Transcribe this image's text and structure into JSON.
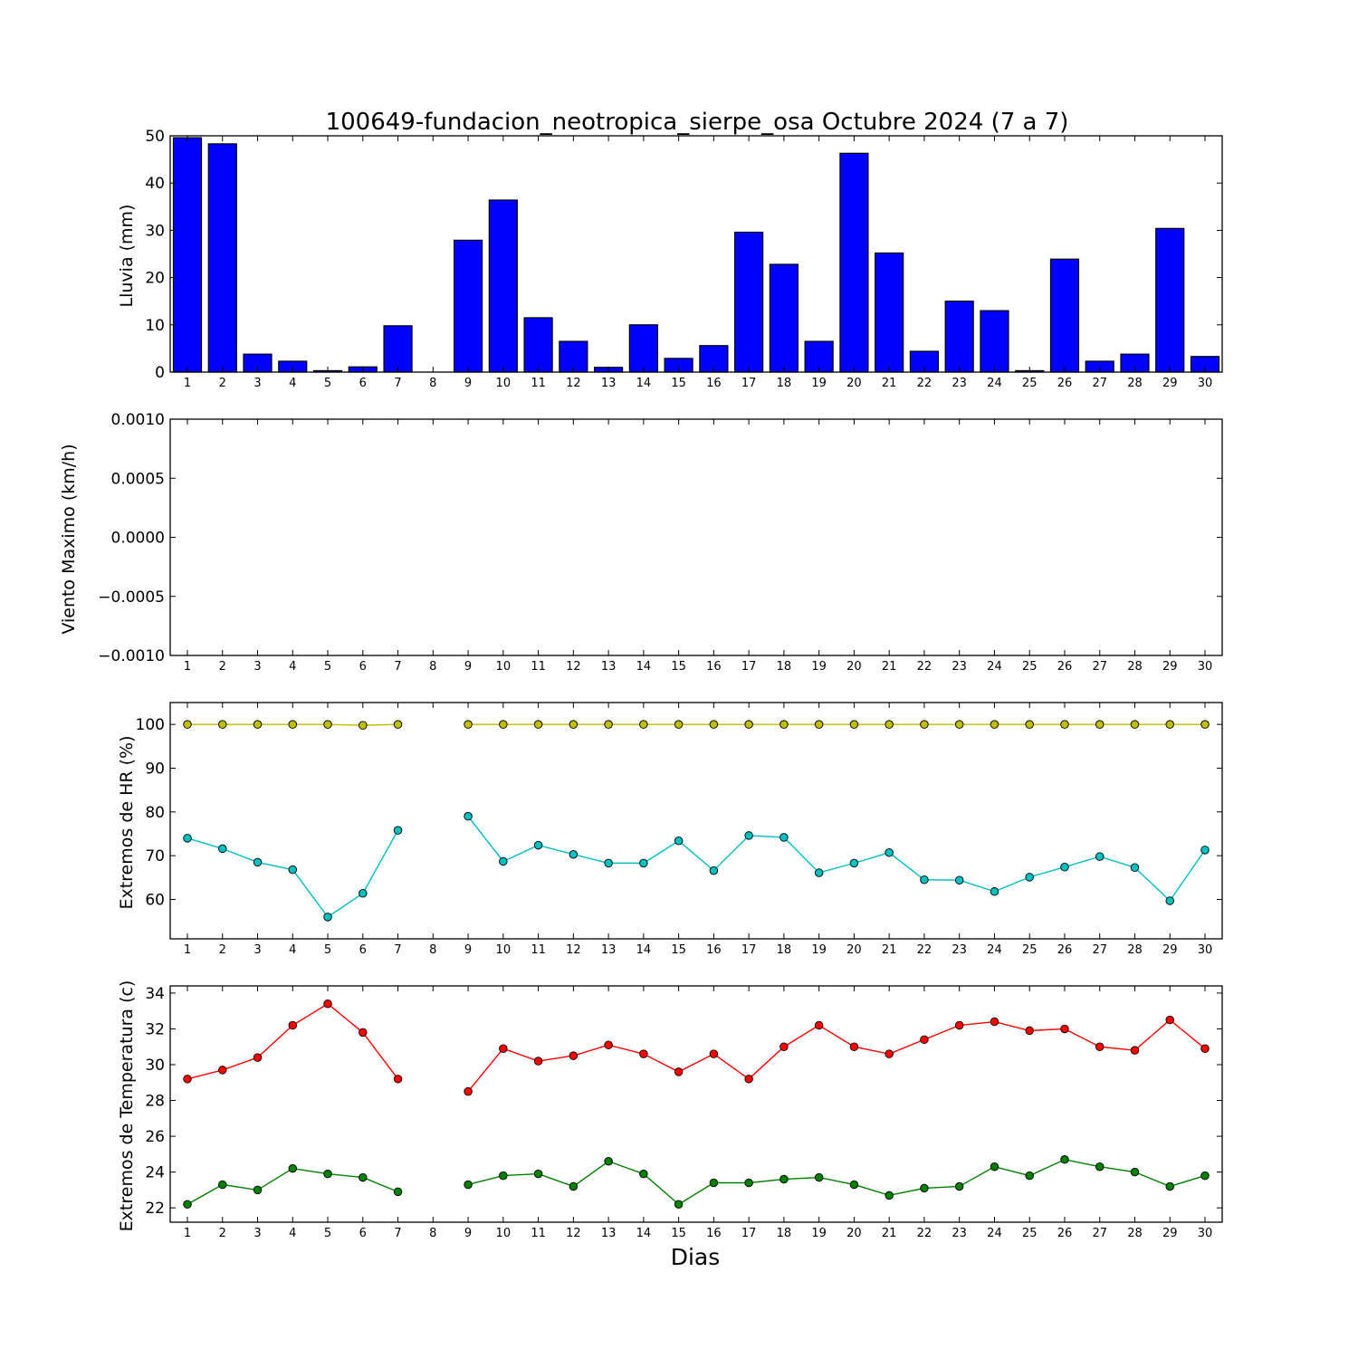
{
  "title": "100649-fundacion_neotropica_sierpe_osa Octubre 2024  (7 a 7)",
  "xlabel": "Dias",
  "colors": {
    "bar": "#0000ff",
    "hr_max": "#bfbf00",
    "hr_min": "#00bfbf",
    "temp_max": "#ff0000",
    "temp_min": "#008000"
  },
  "chart_data": [
    {
      "type": "bar",
      "ylabel": "Lluvia (mm)",
      "ylim": [
        0,
        50
      ],
      "yticks": [
        "0",
        "10",
        "20",
        "30",
        "40",
        "50"
      ],
      "categories": [
        "1",
        "2",
        "3",
        "4",
        "5",
        "6",
        "7",
        "8",
        "9",
        "10",
        "11",
        "12",
        "13",
        "14",
        "15",
        "16",
        "17",
        "18",
        "19",
        "20",
        "21",
        "22",
        "23",
        "24",
        "25",
        "26",
        "27",
        "28",
        "29",
        "30"
      ],
      "values": [
        49.6,
        48.3,
        3.8,
        2.3,
        0.3,
        1.1,
        9.8,
        0,
        27.9,
        36.4,
        11.5,
        6.5,
        1.0,
        10.0,
        2.9,
        5.6,
        29.6,
        22.8,
        6.5,
        46.3,
        25.2,
        4.4,
        15.0,
        13.0,
        0.3,
        23.9,
        2.3,
        3.8,
        30.4,
        3.3
      ]
    },
    {
      "type": "line",
      "ylabel": "Viento Maximo (km/h)",
      "ylim": [
        -0.001,
        0.001
      ],
      "yticks": [
        "−0.0010",
        "−0.0005",
        "0.0000",
        "0.0005",
        "0.0010"
      ],
      "categories": [
        "1",
        "2",
        "3",
        "4",
        "5",
        "6",
        "7",
        "8",
        "9",
        "10",
        "11",
        "12",
        "13",
        "14",
        "15",
        "16",
        "17",
        "18",
        "19",
        "20",
        "21",
        "22",
        "23",
        "24",
        "25",
        "26",
        "27",
        "28",
        "29",
        "30"
      ],
      "series": []
    },
    {
      "type": "line",
      "ylabel": "Extremos de HR (%)",
      "ylim": [
        51,
        105
      ],
      "yticks": [
        "60",
        "70",
        "80",
        "90",
        "100"
      ],
      "categories": [
        "1",
        "2",
        "3",
        "4",
        "5",
        "6",
        "7",
        "8",
        "9",
        "10",
        "11",
        "12",
        "13",
        "14",
        "15",
        "16",
        "17",
        "18",
        "19",
        "20",
        "21",
        "22",
        "23",
        "24",
        "25",
        "26",
        "27",
        "28",
        "29",
        "30"
      ],
      "series": [
        {
          "values": [
            100,
            100,
            100,
            100,
            100,
            99.8,
            100,
            null,
            100,
            100,
            100,
            100,
            100,
            100,
            100,
            100,
            100,
            100,
            100,
            100,
            100,
            100,
            100,
            100,
            100,
            100,
            100,
            100,
            100,
            100
          ]
        },
        {
          "values": [
            74,
            71.6,
            68.5,
            66.8,
            56,
            61.4,
            75.8,
            null,
            79,
            68.7,
            72.4,
            70.3,
            68.3,
            68.3,
            73.4,
            66.6,
            74.6,
            74.2,
            66.1,
            68.3,
            70.7,
            64.5,
            64.4,
            61.8,
            65.1,
            67.4,
            69.8,
            67.3,
            59.7,
            71.3
          ]
        }
      ]
    },
    {
      "type": "line",
      "ylabel": "Extremos de Temperatura (c)",
      "ylim": [
        21.2,
        34.4
      ],
      "yticks": [
        "22",
        "24",
        "26",
        "28",
        "30",
        "32",
        "34"
      ],
      "categories": [
        "1",
        "2",
        "3",
        "4",
        "5",
        "6",
        "7",
        "8",
        "9",
        "10",
        "11",
        "12",
        "13",
        "14",
        "15",
        "16",
        "17",
        "18",
        "19",
        "20",
        "21",
        "22",
        "23",
        "24",
        "25",
        "26",
        "27",
        "28",
        "29",
        "30"
      ],
      "series": [
        {
          "values": [
            29.2,
            29.7,
            30.4,
            32.2,
            33.4,
            31.8,
            29.2,
            null,
            28.5,
            30.9,
            30.2,
            30.5,
            31.1,
            30.6,
            29.6,
            30.6,
            29.2,
            31.0,
            32.2,
            31.0,
            30.6,
            31.4,
            32.2,
            32.4,
            31.9,
            32.0,
            31.0,
            30.8,
            32.5,
            30.9
          ]
        },
        {
          "values": [
            22.2,
            23.3,
            23.0,
            24.2,
            23.9,
            23.7,
            22.9,
            null,
            23.3,
            23.8,
            23.9,
            23.2,
            24.6,
            23.9,
            22.2,
            23.4,
            23.4,
            23.6,
            23.7,
            23.3,
            22.7,
            23.1,
            23.2,
            24.3,
            23.8,
            24.7,
            24.3,
            24.0,
            23.2,
            23.8
          ]
        }
      ]
    }
  ]
}
